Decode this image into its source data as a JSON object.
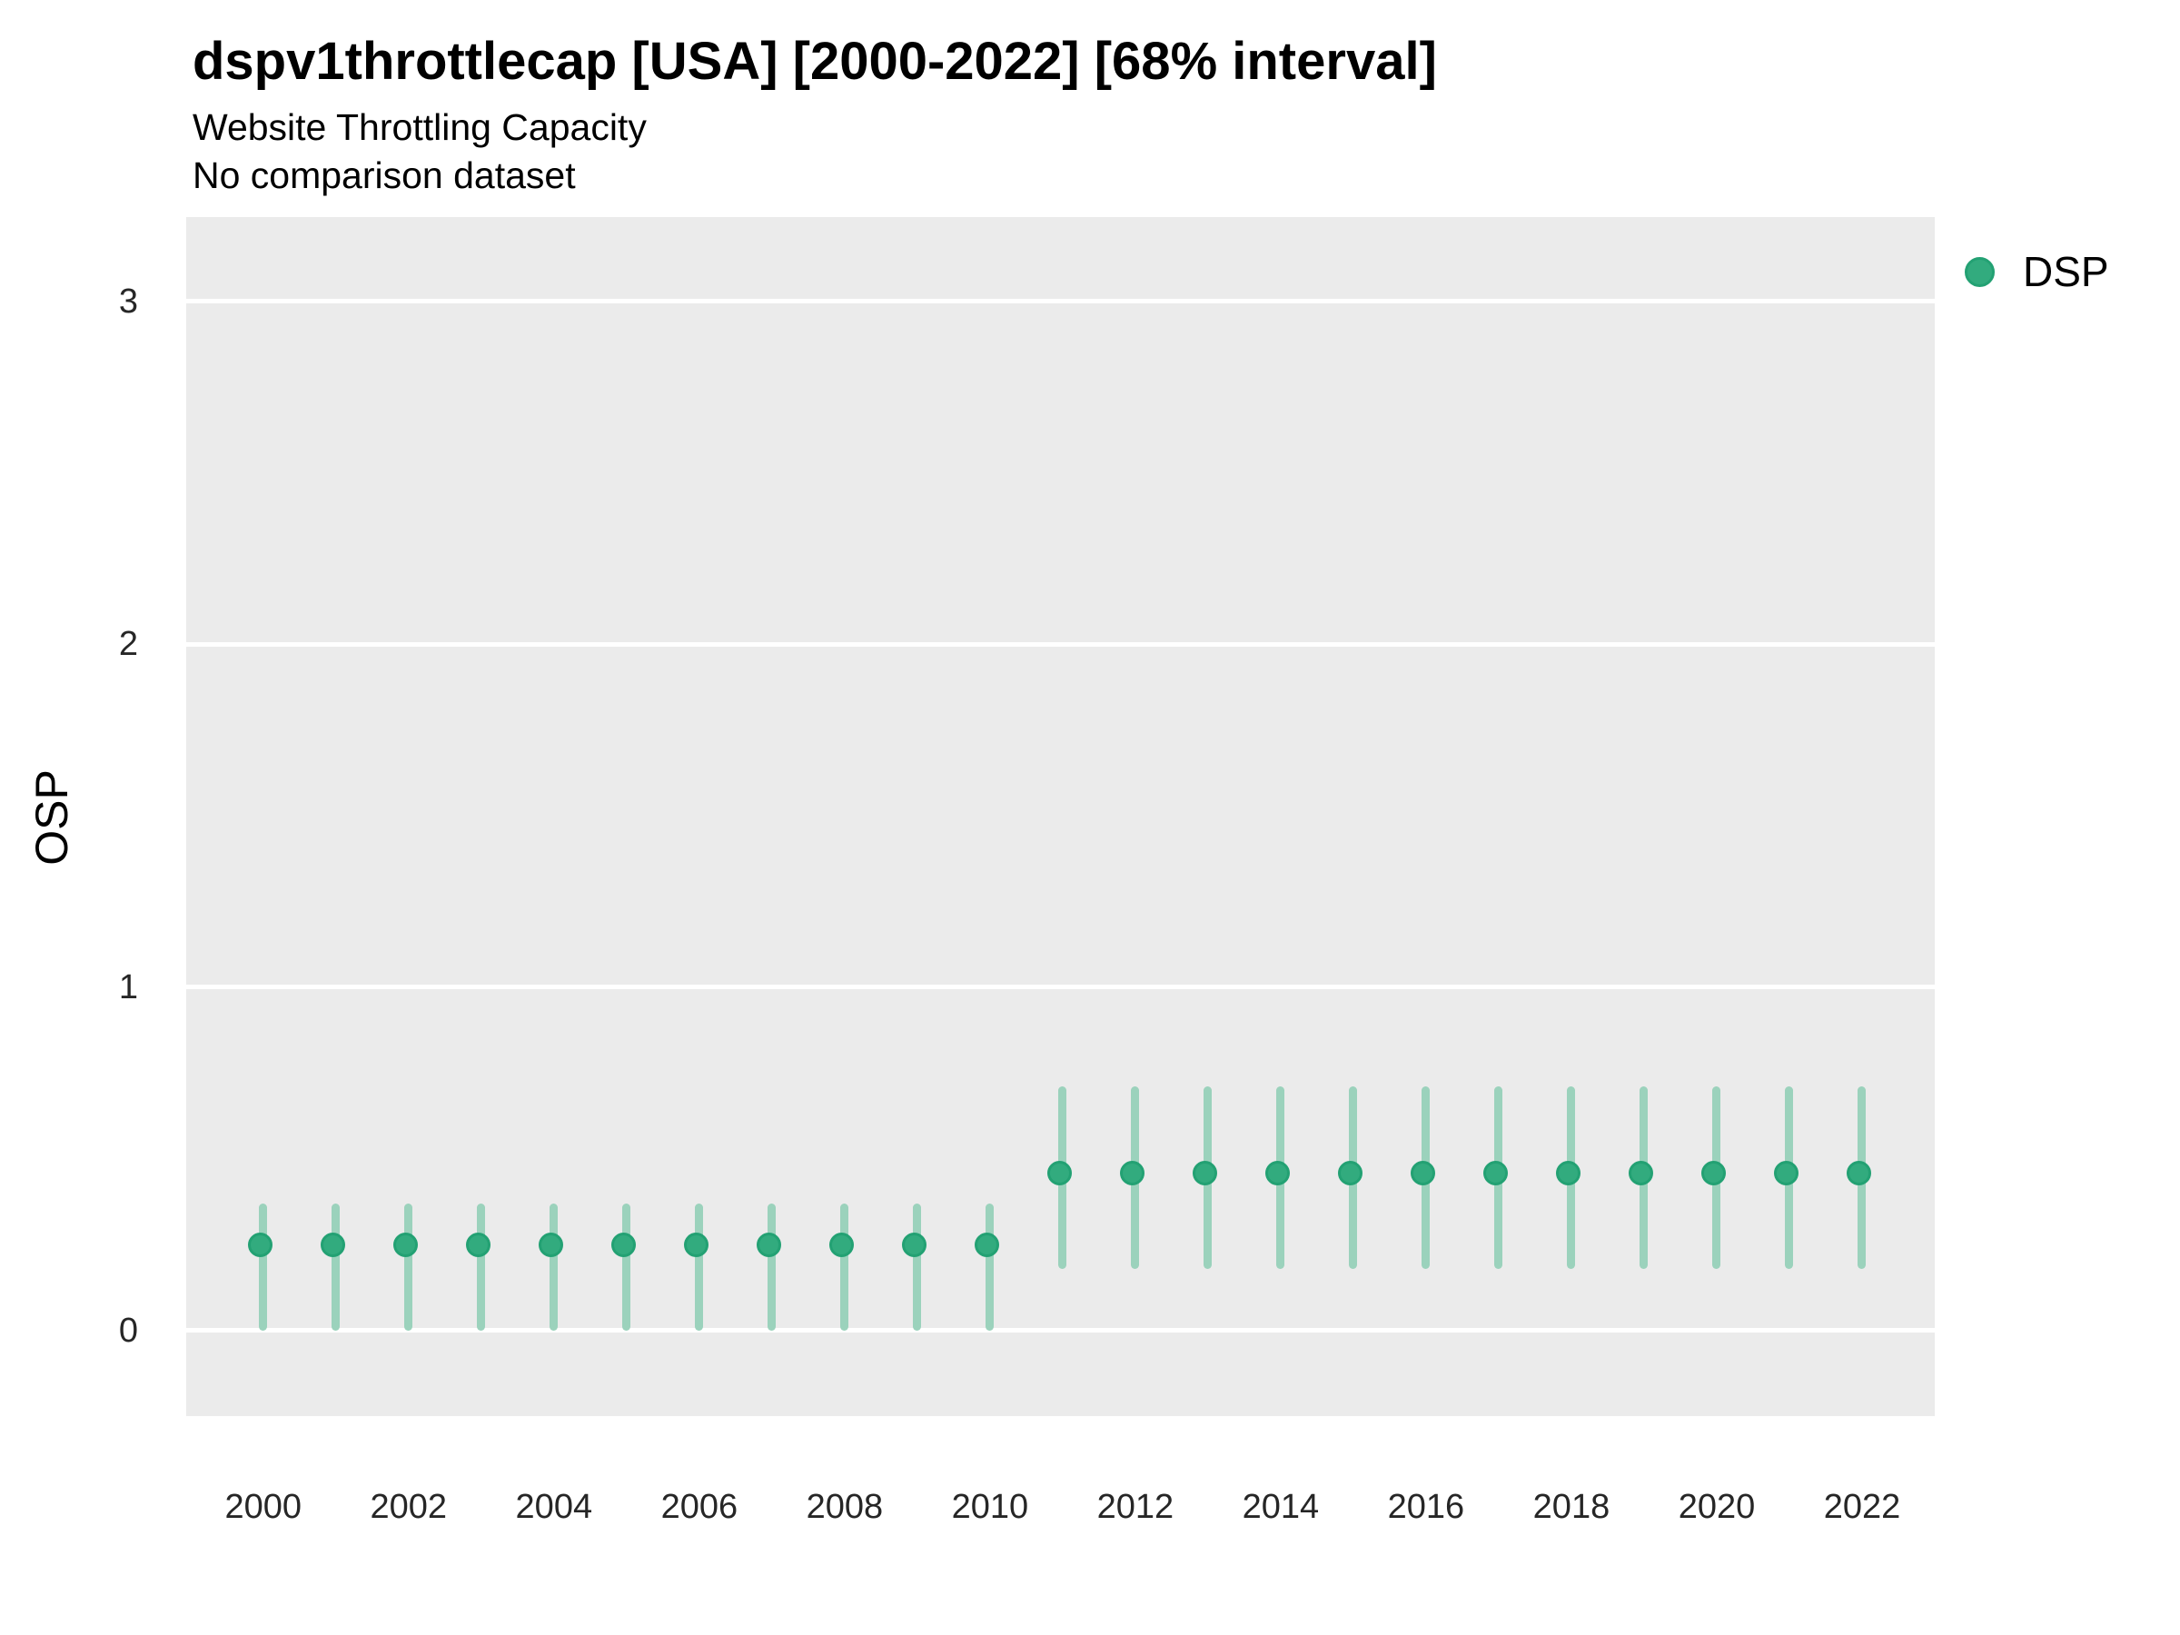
{
  "title": "dspv1throttlecap [USA] [2000-2022] [68% interval]",
  "subtitle": "Website Throttling Capacity",
  "comparison_note": "No comparison dataset",
  "legend": {
    "position": "right",
    "items": [
      {
        "label": "DSP",
        "color": "#32ab7e",
        "ring_color": "#23a173"
      }
    ]
  },
  "colors": {
    "panel_background": "#ebebeb",
    "gridline": "#ffffff",
    "point_fill": "#32ab7e",
    "point_ring": "#23a173",
    "interval_line": "#9bd2bc",
    "tick_text": "#262626",
    "title_text": "#000000"
  },
  "chart_data": {
    "type": "scatter",
    "subtype": "pointrange",
    "title": "dspv1throttlecap [USA] [2000-2022] [68% interval]",
    "subtitle": "Website Throttling Capacity",
    "note": "No comparison dataset",
    "interval": "68%",
    "xlabel": "",
    "ylabel": "OSP",
    "x_ticks": [
      2000,
      2002,
      2004,
      2006,
      2008,
      2010,
      2012,
      2014,
      2016,
      2018,
      2020,
      2022
    ],
    "y_ticks": [
      0,
      1,
      2,
      3
    ],
    "xlim": [
      1998.94,
      2023.0
    ],
    "ylim": [
      -0.25,
      3.245
    ],
    "grid": "horizontal-major-only",
    "legend_position": "right",
    "series": [
      {
        "name": "DSP",
        "color": "#32ab7e",
        "interval_color": "#9bd2bc",
        "points": [
          {
            "year": 2000,
            "value": 0.24,
            "lower": 0.0,
            "upper": 0.37
          },
          {
            "year": 2001,
            "value": 0.24,
            "lower": 0.0,
            "upper": 0.37
          },
          {
            "year": 2002,
            "value": 0.24,
            "lower": 0.0,
            "upper": 0.37
          },
          {
            "year": 2003,
            "value": 0.24,
            "lower": 0.0,
            "upper": 0.37
          },
          {
            "year": 2004,
            "value": 0.24,
            "lower": 0.0,
            "upper": 0.37
          },
          {
            "year": 2005,
            "value": 0.24,
            "lower": 0.0,
            "upper": 0.37
          },
          {
            "year": 2006,
            "value": 0.24,
            "lower": 0.0,
            "upper": 0.37
          },
          {
            "year": 2007,
            "value": 0.24,
            "lower": 0.0,
            "upper": 0.37
          },
          {
            "year": 2008,
            "value": 0.24,
            "lower": 0.0,
            "upper": 0.37
          },
          {
            "year": 2009,
            "value": 0.24,
            "lower": 0.0,
            "upper": 0.37
          },
          {
            "year": 2010,
            "value": 0.24,
            "lower": 0.0,
            "upper": 0.37
          },
          {
            "year": 2011,
            "value": 0.45,
            "lower": 0.18,
            "upper": 0.71
          },
          {
            "year": 2012,
            "value": 0.45,
            "lower": 0.18,
            "upper": 0.71
          },
          {
            "year": 2013,
            "value": 0.45,
            "lower": 0.18,
            "upper": 0.71
          },
          {
            "year": 2014,
            "value": 0.45,
            "lower": 0.18,
            "upper": 0.71
          },
          {
            "year": 2015,
            "value": 0.45,
            "lower": 0.18,
            "upper": 0.71
          },
          {
            "year": 2016,
            "value": 0.45,
            "lower": 0.18,
            "upper": 0.71
          },
          {
            "year": 2017,
            "value": 0.45,
            "lower": 0.18,
            "upper": 0.71
          },
          {
            "year": 2018,
            "value": 0.45,
            "lower": 0.18,
            "upper": 0.71
          },
          {
            "year": 2019,
            "value": 0.45,
            "lower": 0.18,
            "upper": 0.71
          },
          {
            "year": 2020,
            "value": 0.45,
            "lower": 0.18,
            "upper": 0.71
          },
          {
            "year": 2021,
            "value": 0.45,
            "lower": 0.18,
            "upper": 0.71
          },
          {
            "year": 2022,
            "value": 0.45,
            "lower": 0.18,
            "upper": 0.71
          }
        ]
      }
    ]
  }
}
